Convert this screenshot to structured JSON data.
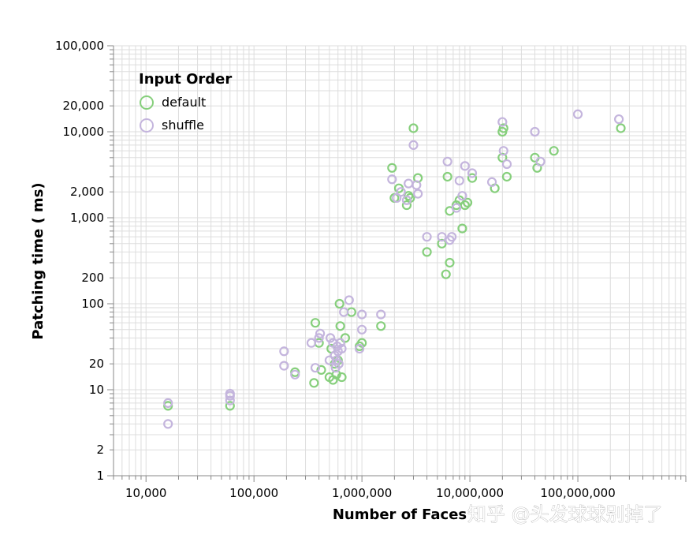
{
  "chart_data": {
    "type": "scatter",
    "x_scale": "log",
    "y_scale": "log",
    "xlabel": "Number of Faces",
    "ylabel": "Patching time ( ms)",
    "xlim": [
      5000,
      1000000000
    ],
    "ylim": [
      1,
      100000
    ],
    "grid": true,
    "x_ticks": [
      {
        "value": 10000,
        "label": "10,000"
      },
      {
        "value": 100000,
        "label": "100,000"
      },
      {
        "value": 1000000,
        "label": "1,000,000"
      },
      {
        "value": 10000000,
        "label": "10,000,000"
      },
      {
        "value": 100000000,
        "label": "100,000,000"
      }
    ],
    "y_ticks": [
      {
        "value": 1,
        "label": "1"
      },
      {
        "value": 2,
        "label": "2"
      },
      {
        "value": 10,
        "label": "10"
      },
      {
        "value": 20,
        "label": "20"
      },
      {
        "value": 100,
        "label": "100"
      },
      {
        "value": 200,
        "label": "200"
      },
      {
        "value": 1000,
        "label": "1,000"
      },
      {
        "value": 2000,
        "label": "2,000"
      },
      {
        "value": 10000,
        "label": "10,000"
      },
      {
        "value": 20000,
        "label": "20,000"
      },
      {
        "value": 100000,
        "label": "100,000"
      }
    ],
    "legend": {
      "title": "Input Order",
      "position": "top-left",
      "entries": [
        {
          "name": "default",
          "color": "#86cf7c"
        },
        {
          "name": "shuffle",
          "color": "#c4b5dd"
        }
      ]
    },
    "series": [
      {
        "name": "default",
        "color": "#86cf7c",
        "points": [
          [
            16000,
            6.5
          ],
          [
            60000,
            6.5
          ],
          [
            240000,
            16
          ],
          [
            360000,
            12
          ],
          [
            370000,
            60
          ],
          [
            400000,
            35
          ],
          [
            420000,
            17
          ],
          [
            500000,
            14
          ],
          [
            520000,
            30
          ],
          [
            540000,
            13
          ],
          [
            560000,
            20
          ],
          [
            580000,
            15
          ],
          [
            600000,
            22
          ],
          [
            620000,
            100
          ],
          [
            630000,
            55
          ],
          [
            650000,
            14
          ],
          [
            700000,
            40
          ],
          [
            800000,
            80
          ],
          [
            950000,
            32
          ],
          [
            1000000,
            35
          ],
          [
            1500000,
            55
          ],
          [
            1900000,
            3800
          ],
          [
            2000000,
            1700
          ],
          [
            2200000,
            2200
          ],
          [
            2600000,
            1400
          ],
          [
            2700000,
            1800
          ],
          [
            2800000,
            1700
          ],
          [
            3000000,
            11000
          ],
          [
            3300000,
            2900
          ],
          [
            4000000,
            400
          ],
          [
            5500000,
            500
          ],
          [
            6000000,
            220
          ],
          [
            6200000,
            3000
          ],
          [
            6500000,
            300
          ],
          [
            6500000,
            1200
          ],
          [
            7500000,
            1400
          ],
          [
            8000000,
            1600
          ],
          [
            8500000,
            750
          ],
          [
            9000000,
            1400
          ],
          [
            9500000,
            1500
          ],
          [
            10500000,
            2900
          ],
          [
            17000000,
            2200
          ],
          [
            20000000,
            5000
          ],
          [
            20000000,
            10000
          ],
          [
            20500000,
            11000
          ],
          [
            22000000,
            3000
          ],
          [
            40000000,
            5000
          ],
          [
            42000000,
            3800
          ],
          [
            60000000,
            6000
          ],
          [
            250000000,
            11000
          ]
        ]
      },
      {
        "name": "shuffle",
        "color": "#c4b5dd",
        "points": [
          [
            16000,
            7
          ],
          [
            16000,
            4
          ],
          [
            60000,
            7.5
          ],
          [
            60000,
            8.5
          ],
          [
            60000,
            9
          ],
          [
            190000,
            19
          ],
          [
            190000,
            28
          ],
          [
            240000,
            15
          ],
          [
            340000,
            35
          ],
          [
            370000,
            18
          ],
          [
            400000,
            40
          ],
          [
            410000,
            45
          ],
          [
            500000,
            22
          ],
          [
            510000,
            40
          ],
          [
            540000,
            35
          ],
          [
            560000,
            25
          ],
          [
            570000,
            18
          ],
          [
            580000,
            22
          ],
          [
            590000,
            32
          ],
          [
            600000,
            28
          ],
          [
            610000,
            20
          ],
          [
            630000,
            35
          ],
          [
            650000,
            30
          ],
          [
            680000,
            80
          ],
          [
            760000,
            110
          ],
          [
            950000,
            30
          ],
          [
            1000000,
            75
          ],
          [
            1000000,
            50
          ],
          [
            1500000,
            75
          ],
          [
            1900000,
            2800
          ],
          [
            2100000,
            1700
          ],
          [
            2300000,
            2000
          ],
          [
            2600000,
            1600
          ],
          [
            2700000,
            2500
          ],
          [
            3000000,
            7000
          ],
          [
            3200000,
            2400
          ],
          [
            3300000,
            1900
          ],
          [
            4000000,
            600
          ],
          [
            5500000,
            600
          ],
          [
            6200000,
            4500
          ],
          [
            6500000,
            550
          ],
          [
            6800000,
            600
          ],
          [
            7500000,
            1300
          ],
          [
            8000000,
            2700
          ],
          [
            8500000,
            1800
          ],
          [
            9000000,
            4000
          ],
          [
            10500000,
            3300
          ],
          [
            16000000,
            2600
          ],
          [
            20000000,
            13000
          ],
          [
            20500000,
            6000
          ],
          [
            22000000,
            4200
          ],
          [
            40000000,
            10000
          ],
          [
            45000000,
            4500
          ],
          [
            100000000,
            16000
          ],
          [
            240000000,
            14000
          ]
        ]
      }
    ]
  },
  "watermark": "知乎 @头发球球别掉了"
}
